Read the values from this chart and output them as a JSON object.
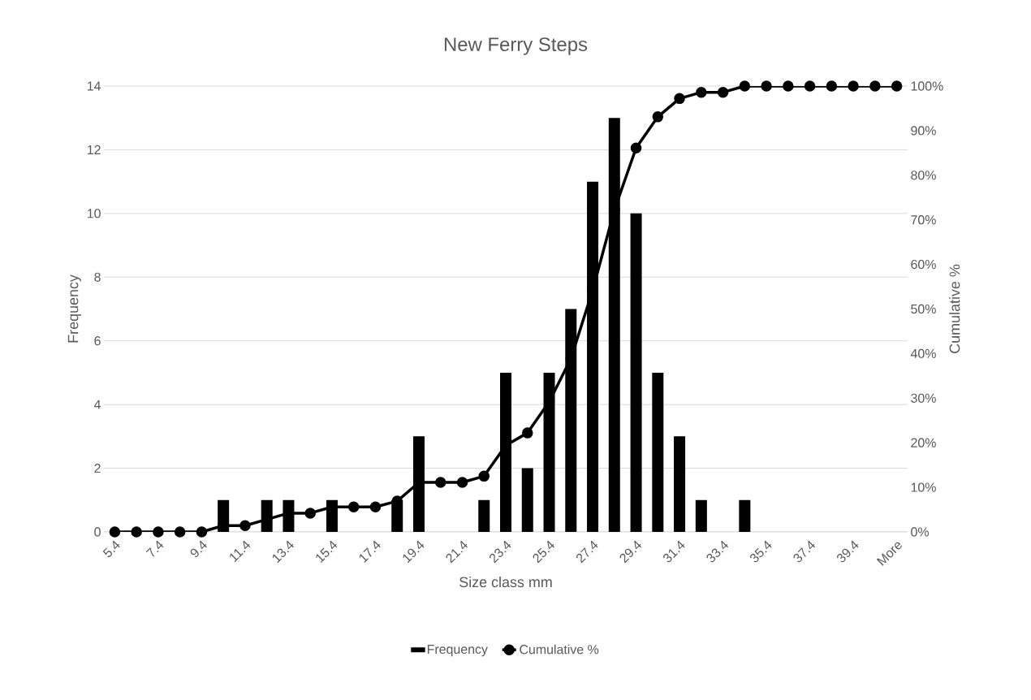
{
  "chart_data": {
    "type": "bar",
    "title": "New Ferry Steps",
    "xlabel": "Size class mm",
    "ylabel": "Frequency",
    "y2label": "Cumulative %",
    "categories": [
      "5.4",
      null,
      "7.4",
      null,
      "9.4",
      null,
      "11.4",
      null,
      "13.4",
      null,
      "15.4",
      null,
      "17.4",
      null,
      "19.4",
      null,
      "21.4",
      null,
      "23.4",
      null,
      "25.4",
      null,
      "27.4",
      null,
      "29.4",
      null,
      "31.4",
      null,
      "33.4",
      null,
      "35.4",
      null,
      "37.4",
      null,
      "39.4",
      null,
      "More"
    ],
    "series": [
      {
        "name": "Frequency",
        "color": "#000000",
        "values": [
          0,
          0,
          0,
          0,
          0,
          1,
          0,
          1,
          1,
          0,
          1,
          0,
          0,
          1,
          3,
          0,
          0,
          1,
          5,
          2,
          5,
          7,
          11,
          13,
          10,
          5,
          3,
          1,
          0,
          1,
          0,
          0,
          0,
          0,
          0,
          0,
          0
        ]
      },
      {
        "name": "Cumulative %",
        "type": "line",
        "axis": "y2",
        "marker": "circle",
        "color": "#000000",
        "values": [
          0,
          0,
          0,
          0,
          0,
          1.4,
          1.4,
          2.8,
          4.2,
          4.2,
          5.6,
          5.6,
          5.6,
          6.9,
          11.1,
          11.1,
          11.1,
          12.5,
          19.4,
          22.2,
          29.2,
          38.9,
          54.2,
          72.2,
          86.1,
          93.1,
          97.2,
          98.6,
          98.6,
          100,
          100,
          100,
          100,
          100,
          100,
          100,
          100
        ]
      }
    ],
    "ylim": [
      0,
      14
    ],
    "yticks": [
      0,
      2,
      4,
      6,
      8,
      10,
      12,
      14
    ],
    "y2lim": [
      0,
      100
    ],
    "y2ticks": [
      {
        "value": 0,
        "label": "0%"
      },
      {
        "value": 10,
        "label": "10%"
      },
      {
        "value": 20,
        "label": "20%"
      },
      {
        "value": 30,
        "label": "30%"
      },
      {
        "value": 40,
        "label": "40%"
      },
      {
        "value": 50,
        "label": "50%"
      },
      {
        "value": 60,
        "label": "60%"
      },
      {
        "value": 70,
        "label": "70%"
      },
      {
        "value": 80,
        "label": "80%"
      },
      {
        "value": 90,
        "label": "90%"
      },
      {
        "value": 100,
        "label": "100%"
      }
    ],
    "grid": "y",
    "legend": "bottom"
  }
}
